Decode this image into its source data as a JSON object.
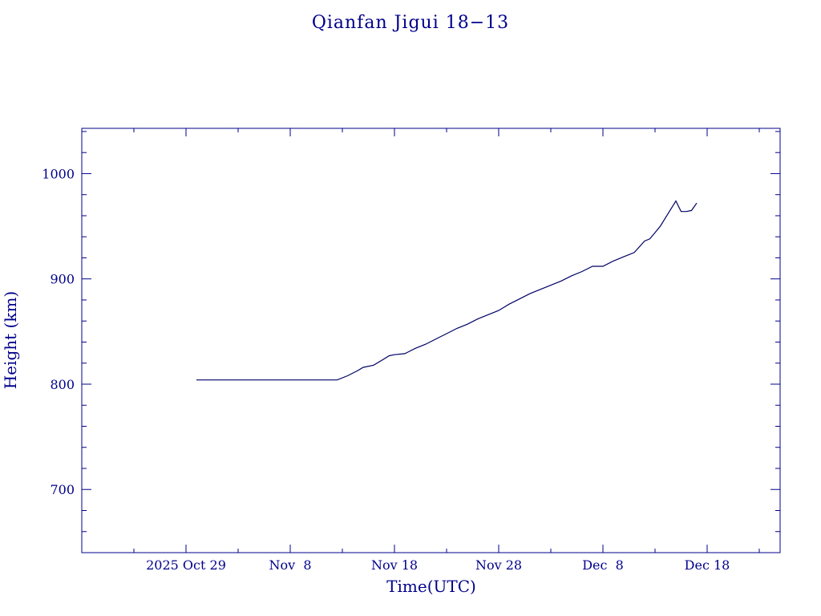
{
  "chart_data": {
    "type": "line",
    "title": "Qianfan Jigui 18−13",
    "xlabel": "Time(UTC)",
    "ylabel": "Height (km)",
    "x_tick_labels": [
      "2025 Oct 29",
      "Nov  8",
      "Nov 18",
      "Nov 28",
      "Dec  8",
      "Dec 18"
    ],
    "x_tick_dates": [
      "2025-10-29",
      "2025-11-08",
      "2025-11-18",
      "2025-11-28",
      "2025-12-08",
      "2025-12-18"
    ],
    "xlim": [
      "2025-10-19",
      "2025-12-25"
    ],
    "ylim": [
      640,
      1043
    ],
    "y_ticks": [
      700,
      800,
      900,
      1000
    ],
    "grid": false,
    "color": "#00008b",
    "series": [
      {
        "x": [
          "2025-10-30",
          "2025-11-01",
          "2025-11-05",
          "2025-11-08",
          "2025-11-10",
          "2025-11-12",
          "2025-11-12.5",
          "2025-11-13.5",
          "2025-11-14.5",
          "2025-11-15",
          "2025-11-16",
          "2025-11-17",
          "2025-11-17.5",
          "2025-11-18",
          "2025-11-19",
          "2025-11-20",
          "2025-11-21",
          "2025-11-22",
          "2025-11-23",
          "2025-11-24",
          "2025-11-25",
          "2025-11-26",
          "2025-11-27",
          "2025-11-28",
          "2025-11-29",
          "2025-11-30",
          "2025-12-01",
          "2025-12-02",
          "2025-12-03",
          "2025-12-04",
          "2025-12-05",
          "2025-12-06",
          "2025-12-07",
          "2025-12-08",
          "2025-12-09",
          "2025-12-10",
          "2025-12-11",
          "2025-12-12",
          "2025-12-12.5",
          "2025-12-13",
          "2025-12-13.5",
          "2025-12-14",
          "2025-12-14.5",
          "2025-12-15",
          "2025-12-15.5",
          "2025-12-16",
          "2025-12-16.5",
          "2025-12-17"
        ],
        "y": [
          804,
          804,
          804,
          804,
          804,
          804,
          804,
          808,
          813,
          816,
          818,
          824,
          827,
          828,
          829,
          834,
          838,
          843,
          848,
          853,
          857,
          862,
          866,
          870,
          876,
          881,
          886,
          890,
          894,
          898,
          903,
          907,
          912,
          912,
          917,
          921,
          925,
          936,
          938,
          944,
          950,
          958,
          966,
          974,
          964,
          964,
          965,
          972
        ]
      }
    ]
  }
}
